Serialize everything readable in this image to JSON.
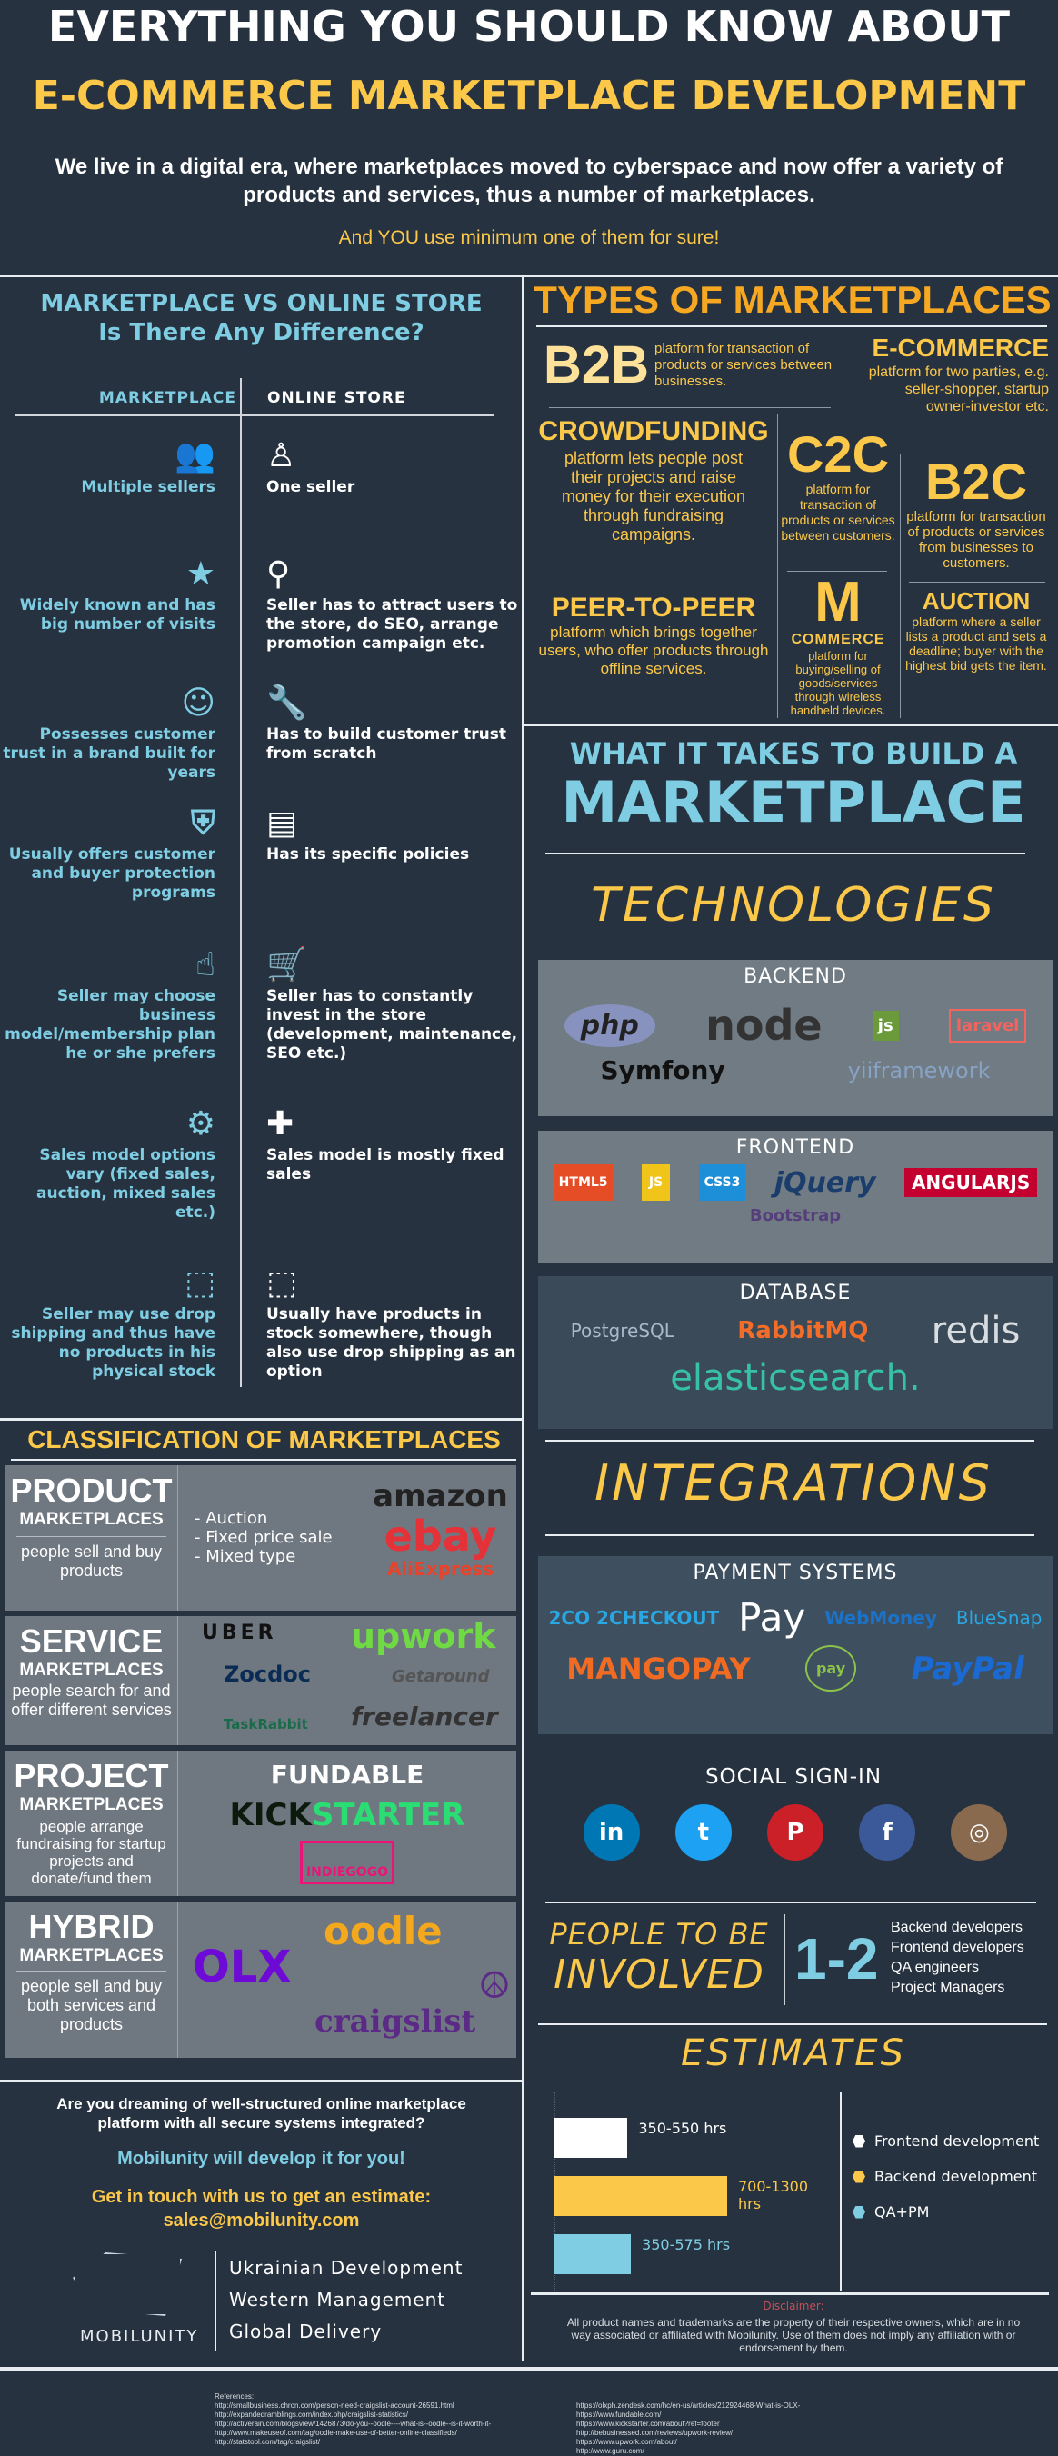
{
  "header": {
    "title_line1": "EVERYTHING YOU SHOULD KNOW ABOUT",
    "title_line2": "E-COMMERCE MARKETPLACE DEVELOPMENT",
    "intro": "We live in a digital era, where marketplaces moved to cyberspace and now offer a variety of products and services, thus a number of marketplaces.",
    "tagline": "And YOU use minimum one of them for sure!"
  },
  "comparison": {
    "title": "MARKETPLACE VS ONLINE STORE",
    "subtitle": "Is There Any Difference?",
    "col_marketplace": "MARKETPLACE",
    "col_store": "ONLINE STORE",
    "rows": [
      {
        "left_icon": "users-icon",
        "left": "Multiple sellers",
        "right_icon": "person-icon",
        "right": "One seller"
      },
      {
        "left_icon": "star-icon",
        "left": "Widely known and has big number of visits",
        "right_icon": "magnifier-icon",
        "right": "Seller has to attract users to the store, do SEO, arrange promotion campaign etc."
      },
      {
        "left_icon": "smiley-thumb-icon",
        "left": "Possesses customer trust in a brand built for years",
        "right_icon": "wrench-icon",
        "right": "Has to build customer trust from scratch"
      },
      {
        "left_icon": "shield-icon",
        "left": "Usually offers customer and buyer protection programs",
        "right_icon": "document-icon",
        "right": "Has its specific policies"
      },
      {
        "left_icon": "hand-pointer-icon",
        "left": "Seller may choose business model/membership plan he or she prefers",
        "right_icon": "cart-dollar-icon",
        "right": "Seller has to constantly invest in the store (development, maintenance, SEO etc.)"
      },
      {
        "left_icon": "gears-icon",
        "left": "Sales model options vary (fixed sales, auction, mixed sales etc.)",
        "right_icon": "puzzle-icon",
        "right": "Sales model is mostly fixed sales"
      },
      {
        "left_icon": "box-icon",
        "left": "Seller may use drop shipping and thus have no products in his physical stock",
        "right_icon": "box-icon",
        "right": "Usually have products in stock somewhere, though also use drop shipping as an option"
      }
    ]
  },
  "classification": {
    "title": "CLASSIFICATION OF MARKETPLACES",
    "marketplaces_label": "MARKETPLACES",
    "product": {
      "name": "PRODUCT",
      "desc": "people sell and buy products",
      "types": [
        "- Auction",
        "- Fixed price sale",
        "- Mixed type"
      ],
      "logos": [
        "amazon",
        "ebay",
        "AliExpress"
      ]
    },
    "service": {
      "name": "SERVICE",
      "desc": "people search for and offer different services",
      "logos": [
        "UBER",
        "upwork",
        "Zocdoc",
        "Getaround",
        "TaskRabbit",
        "freelancer"
      ]
    },
    "project": {
      "name": "PROJECT",
      "desc": "people arrange fundraising for startup projects and donate/fund them",
      "logos": [
        "FUNDABLE",
        "KICK",
        "STARTER",
        "INDIEGOGO"
      ]
    },
    "hybrid": {
      "name": "HYBRID",
      "desc": "people sell and buy both services and products",
      "logos": [
        "OLX",
        "oodle",
        "craigslist"
      ]
    }
  },
  "cta": {
    "question": "Are you dreaming of well-structured online marketplace platform with all secure systems integrated?",
    "promise": "Mobilunity will develop it for you!",
    "contact": "Get in touch with us to get an estimate:",
    "email": "sales@mobilunity.com"
  },
  "brand": {
    "name": "MOBILUNITY",
    "lines": [
      "Ukrainian Development",
      "Western Management",
      "Global Delivery"
    ]
  },
  "types": {
    "title": "TYPES OF MARKETPLACES",
    "b2b": {
      "name": "B2B",
      "desc": "platform for transaction of products or services between businesses."
    },
    "ecommerce": {
      "name": "E-COMMERCE",
      "desc": "platform for two parties, e.g. seller-shopper, startup owner-investor etc."
    },
    "crowdfunding": {
      "name": "CROWDFUNDING",
      "desc": "platform lets people post their projects and raise money for their execution through fundraising campaigns."
    },
    "c2c": {
      "name": "C2C",
      "desc": "platform for transaction of products or services between customers."
    },
    "b2c": {
      "name": "B2C",
      "desc": "platform for transaction of products or services from businesses to customers."
    },
    "p2p": {
      "name": "PEER-TO-PEER",
      "desc": "platform which brings together users, who offer products through offline services."
    },
    "mcommerce": {
      "name": "M",
      "name2": "COMMERCE",
      "desc": "platform for buying/selling of goods/services through wireless handheld devices."
    },
    "auction": {
      "name": "AUCTION",
      "desc": "platform where a seller lists a product and sets a deadline; buyer with the highest bid gets the item."
    }
  },
  "build": {
    "title1": "WHAT IT TAKES TO BUILD A",
    "title2": "MARKETPLACE",
    "technologies": "TECHNOLOGIES",
    "backend": {
      "label": "BACKEND",
      "logos": [
        "php",
        "node",
        "js",
        "laravel",
        "Symfony",
        "yiiframework"
      ]
    },
    "frontend": {
      "label": "FRONTEND",
      "logos": [
        "HTML5",
        "JS",
        "CSS3",
        "jQuery",
        "ANGULARJS",
        "Bootstrap"
      ]
    },
    "database": {
      "label": "DATABASE",
      "logos": [
        "PostgreSQL",
        "RabbitMQ",
        "redis",
        "elasticsearch."
      ]
    },
    "integrations": "INTEGRATIONS",
    "payment": {
      "label": "PAYMENT SYSTEMS",
      "logos": [
        "2CO 2CHECKOUT",
        "Pay",
        "WebMoney",
        "BlueSnap",
        "MANGOPAY",
        "pay",
        "PayPal"
      ]
    },
    "social": {
      "label": "SOCIAL SIGN-IN",
      "icons": [
        "linkedin-icon",
        "twitter-icon",
        "pinterest-icon",
        "facebook-icon",
        "instagram-icon"
      ],
      "letters": [
        "in",
        "t",
        "P",
        "f",
        "◎"
      ]
    },
    "people": {
      "title1": "PEOPLE TO BE",
      "title2": "INVOLVED",
      "count": "1-2",
      "roles": [
        "Backend developers",
        "Frontend developers",
        "QA engineers",
        "Project Managers"
      ]
    },
    "estimates_title": "ESTIMATES"
  },
  "chart_data": {
    "type": "bar",
    "orientation": "horizontal",
    "categories": [
      "Frontend development",
      "Backend development",
      "QA+PM"
    ],
    "ranges": [
      [
        350,
        550
      ],
      [
        700,
        1300
      ],
      [
        350,
        575
      ]
    ],
    "labels": [
      "350-550 hrs",
      "700-1300 hrs",
      "350-575 hrs"
    ],
    "colors": [
      "#ffffff",
      "#fcc84a",
      "#7fcde3"
    ],
    "legend": "right"
  },
  "disclaimer": {
    "title": "Disclaimer:",
    "text": "All product names and trademarks are the property of their respective owners, which are in no way associated or affiliated with Mobilunity. Use of them does not imply any affiliation with or endorsement by them."
  },
  "references": {
    "label": "References:",
    "left": [
      "http://smallbusiness.chron.com/person-need-craigslist-account-26591.html",
      "http://expandedramblings.com/index.php/craigslist-statistics/",
      "http://activerain.com/blogsview/1426873/do-you--oodle----what-is--oodle--is-it-worth-it-",
      "http://www.makeuseof.com/tag/oodle-make-use-of-better-online-classifieds/",
      "http://statstool.com/tag/craigslist/"
    ],
    "right": [
      "https://olxph.zendesk.com/hc/en-us/articles/212924468-What-is-OLX-",
      "https://www.fundable.com/",
      "https://www.kickstarter.com/about?ref=footer",
      "http://bebusinessed.com/reviews/upwork-review/",
      "https://www.upwork.com/about/",
      "http://www.guru.com/"
    ]
  },
  "colors": {
    "background": "#26323f",
    "yellow": "#fcc84a",
    "orange": "#f7a823",
    "cyan": "#7fcde3",
    "box_gray": "#6f7780"
  }
}
